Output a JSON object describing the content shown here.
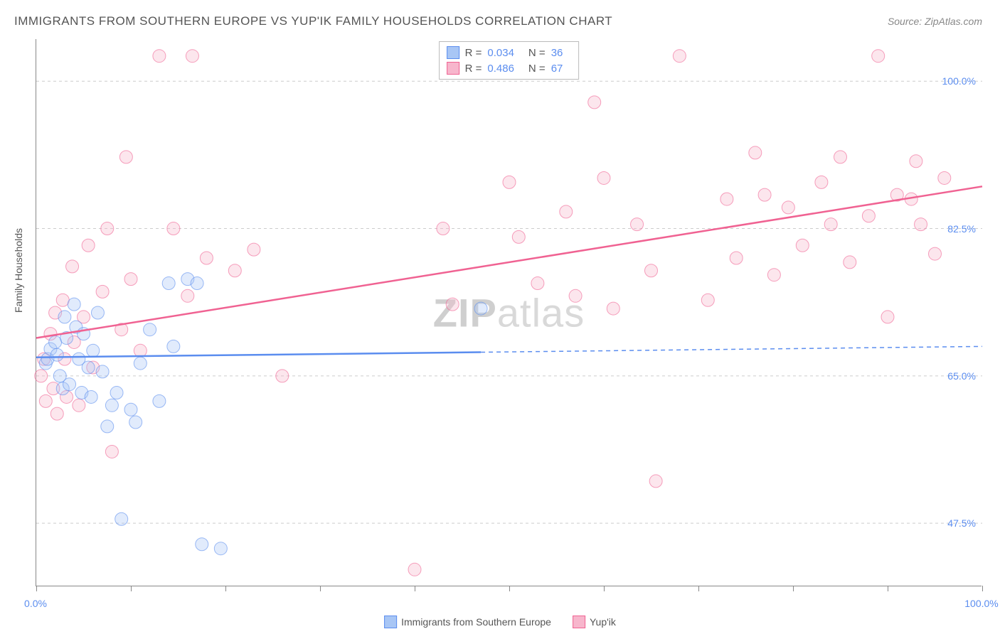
{
  "title": "IMMIGRANTS FROM SOUTHERN EUROPE VS YUP'IK FAMILY HOUSEHOLDS CORRELATION CHART",
  "source": "Source: ZipAtlas.com",
  "y_axis_label": "Family Households",
  "watermark_bold": "ZIP",
  "watermark_light": "atlas",
  "chart": {
    "type": "scatter",
    "background_color": "#ffffff",
    "grid_color": "#cccccc",
    "axis_color": "#888888",
    "tick_label_color": "#5b8def",
    "xlim": [
      0,
      100
    ],
    "ylim": [
      40,
      105
    ],
    "y_ticks": [
      {
        "value": 47.5,
        "label": "47.5%"
      },
      {
        "value": 65.0,
        "label": "65.0%"
      },
      {
        "value": 82.5,
        "label": "82.5%"
      },
      {
        "value": 100.0,
        "label": "100.0%"
      }
    ],
    "x_ticks": [
      0,
      10,
      20,
      30,
      40,
      50,
      60,
      70,
      80,
      90,
      100
    ],
    "x_tick_labels": {
      "0": "0.0%",
      "100": "100.0%"
    },
    "marker_radius": 9,
    "marker_opacity": 0.35,
    "line_width": 2.5,
    "series": [
      {
        "id": "blue",
        "name": "Immigrants from Southern Europe",
        "color": "#5b8def",
        "fill": "#a8c6f5",
        "stroke": "#5b8def",
        "R": "0.034",
        "N": "36",
        "trend": {
          "x1": 0,
          "y1": 67.2,
          "x2": 100,
          "y2": 68.5
        },
        "trend_solid_until": 47,
        "points": [
          [
            1.0,
            66.5
          ],
          [
            1.2,
            67.0
          ],
          [
            1.5,
            68.2
          ],
          [
            2.0,
            69.0
          ],
          [
            2.2,
            67.5
          ],
          [
            2.5,
            65.0
          ],
          [
            2.8,
            63.5
          ],
          [
            3.0,
            72.0
          ],
          [
            3.2,
            69.5
          ],
          [
            3.5,
            64.0
          ],
          [
            4.0,
            73.5
          ],
          [
            4.2,
            70.8
          ],
          [
            4.5,
            67.0
          ],
          [
            4.8,
            63.0
          ],
          [
            5.0,
            70.0
          ],
          [
            5.5,
            66.0
          ],
          [
            5.8,
            62.5
          ],
          [
            6.0,
            68.0
          ],
          [
            6.5,
            72.5
          ],
          [
            7.0,
            65.5
          ],
          [
            7.5,
            59.0
          ],
          [
            8.0,
            61.5
          ],
          [
            8.5,
            63.0
          ],
          [
            9.0,
            48.0
          ],
          [
            10.0,
            61.0
          ],
          [
            10.5,
            59.5
          ],
          [
            11.0,
            66.5
          ],
          [
            12.0,
            70.5
          ],
          [
            13.0,
            62.0
          ],
          [
            14.0,
            76.0
          ],
          [
            14.5,
            68.5
          ],
          [
            16.0,
            76.5
          ],
          [
            17.0,
            76.0
          ],
          [
            17.5,
            45.0
          ],
          [
            19.5,
            44.5
          ],
          [
            47.0,
            73.0
          ]
        ]
      },
      {
        "id": "pink",
        "name": "Yup'ik",
        "color": "#f06292",
        "fill": "#f7b6cc",
        "stroke": "#f06292",
        "R": "0.486",
        "N": "67",
        "trend": {
          "x1": 0,
          "y1": 69.5,
          "x2": 100,
          "y2": 87.5
        },
        "trend_solid_until": 100,
        "points": [
          [
            0.5,
            65.0
          ],
          [
            0.8,
            67.0
          ],
          [
            1.0,
            62.0
          ],
          [
            1.5,
            70.0
          ],
          [
            1.8,
            63.5
          ],
          [
            2.0,
            72.5
          ],
          [
            2.2,
            60.5
          ],
          [
            2.8,
            74.0
          ],
          [
            3.0,
            67.0
          ],
          [
            3.2,
            62.5
          ],
          [
            3.8,
            78.0
          ],
          [
            4.0,
            69.0
          ],
          [
            4.5,
            61.5
          ],
          [
            5.0,
            72.0
          ],
          [
            5.5,
            80.5
          ],
          [
            6.0,
            66.0
          ],
          [
            7.0,
            75.0
          ],
          [
            7.5,
            82.5
          ],
          [
            8.0,
            56.0
          ],
          [
            9.0,
            70.5
          ],
          [
            9.5,
            91.0
          ],
          [
            10.0,
            76.5
          ],
          [
            11.0,
            68.0
          ],
          [
            13.0,
            103.0
          ],
          [
            14.5,
            82.5
          ],
          [
            16.0,
            74.5
          ],
          [
            16.5,
            103.0
          ],
          [
            18.0,
            79.0
          ],
          [
            21.0,
            77.5
          ],
          [
            23.0,
            80.0
          ],
          [
            26.0,
            65.0
          ],
          [
            40.0,
            42.0
          ],
          [
            43.0,
            82.5
          ],
          [
            44.0,
            73.5
          ],
          [
            50.0,
            88.0
          ],
          [
            51.0,
            81.5
          ],
          [
            53.0,
            76.0
          ],
          [
            56.0,
            84.5
          ],
          [
            57.0,
            74.5
          ],
          [
            59.0,
            97.5
          ],
          [
            60.0,
            88.5
          ],
          [
            61.0,
            73.0
          ],
          [
            63.5,
            83.0
          ],
          [
            65.0,
            77.5
          ],
          [
            65.5,
            52.5
          ],
          [
            68.0,
            103.0
          ],
          [
            71.0,
            74.0
          ],
          [
            73.0,
            86.0
          ],
          [
            74.0,
            79.0
          ],
          [
            76.0,
            91.5
          ],
          [
            77.0,
            86.5
          ],
          [
            78.0,
            77.0
          ],
          [
            79.5,
            85.0
          ],
          [
            81.0,
            80.5
          ],
          [
            83.0,
            88.0
          ],
          [
            84.0,
            83.0
          ],
          [
            85.0,
            91.0
          ],
          [
            86.0,
            78.5
          ],
          [
            88.0,
            84.0
          ],
          [
            89.0,
            103.0
          ],
          [
            90.0,
            72.0
          ],
          [
            91.0,
            86.5
          ],
          [
            92.5,
            86.0
          ],
          [
            93.0,
            90.5
          ],
          [
            93.5,
            83.0
          ],
          [
            95.0,
            79.5
          ],
          [
            96.0,
            88.5
          ]
        ]
      }
    ]
  },
  "legend_top": {
    "r_label": "R =",
    "n_label": "N ="
  },
  "x_axis_bottom_labels": {
    "left": "0.0%",
    "right": "100.0%"
  }
}
